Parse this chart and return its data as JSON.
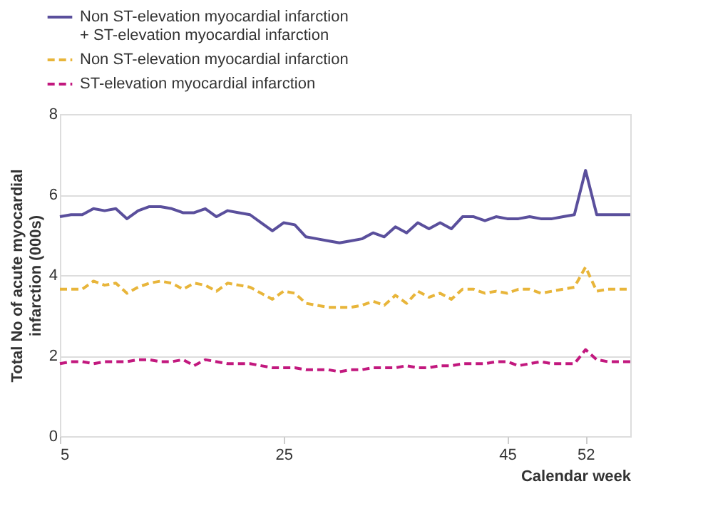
{
  "chart_data": {
    "type": "line",
    "xlabel": "Calendar week",
    "ylabel": "Total No of acute myocardial\ninfarction (000s)",
    "x": [
      5,
      6,
      7,
      8,
      9,
      10,
      11,
      12,
      13,
      14,
      15,
      16,
      17,
      18,
      19,
      20,
      21,
      22,
      23,
      24,
      25,
      26,
      27,
      28,
      29,
      30,
      31,
      32,
      33,
      34,
      35,
      36,
      37,
      38,
      39,
      40,
      41,
      42,
      43,
      44,
      45,
      46,
      47,
      48,
      49,
      50,
      51,
      52,
      53,
      54,
      55,
      56
    ],
    "series": [
      {
        "name": "Non ST-elevation myocardial infarction\n+ ST-elevation myocardial infarction",
        "color": "#5a4f9c",
        "line_style": "solid",
        "values": [
          5.45,
          5.5,
          5.5,
          5.65,
          5.6,
          5.65,
          5.4,
          5.6,
          5.7,
          5.7,
          5.65,
          5.55,
          5.55,
          5.65,
          5.45,
          5.6,
          5.55,
          5.5,
          5.3,
          5.1,
          5.3,
          5.25,
          4.95,
          4.9,
          4.85,
          4.8,
          4.85,
          4.9,
          5.05,
          4.95,
          5.2,
          5.05,
          5.3,
          5.15,
          5.3,
          5.15,
          5.45,
          5.45,
          5.35,
          5.45,
          5.4,
          5.4,
          5.45,
          5.4,
          5.4,
          5.45,
          5.5,
          6.6,
          5.5,
          5.5,
          5.5,
          5.5
        ]
      },
      {
        "name": "Non ST-elevation myocardial infarction",
        "color": "#e8b53a",
        "line_style": "dashed",
        "values": [
          3.65,
          3.65,
          3.65,
          3.85,
          3.75,
          3.8,
          3.55,
          3.7,
          3.8,
          3.85,
          3.8,
          3.65,
          3.8,
          3.75,
          3.6,
          3.8,
          3.75,
          3.7,
          3.55,
          3.4,
          3.6,
          3.55,
          3.3,
          3.25,
          3.2,
          3.2,
          3.2,
          3.25,
          3.35,
          3.25,
          3.5,
          3.3,
          3.6,
          3.45,
          3.55,
          3.4,
          3.65,
          3.65,
          3.55,
          3.6,
          3.55,
          3.65,
          3.65,
          3.55,
          3.6,
          3.65,
          3.7,
          4.2,
          3.6,
          3.65,
          3.65,
          3.65
        ]
      },
      {
        "name": "ST-elevation myocardial infarction",
        "color": "#c2187e",
        "line_style": "dashed",
        "values": [
          1.8,
          1.85,
          1.85,
          1.8,
          1.85,
          1.85,
          1.85,
          1.9,
          1.9,
          1.85,
          1.85,
          1.9,
          1.75,
          1.9,
          1.85,
          1.8,
          1.8,
          1.8,
          1.75,
          1.7,
          1.7,
          1.7,
          1.65,
          1.65,
          1.65,
          1.6,
          1.65,
          1.65,
          1.7,
          1.7,
          1.7,
          1.75,
          1.7,
          1.7,
          1.75,
          1.75,
          1.8,
          1.8,
          1.8,
          1.85,
          1.85,
          1.75,
          1.8,
          1.85,
          1.8,
          1.8,
          1.8,
          2.15,
          1.9,
          1.85,
          1.85,
          1.85
        ]
      }
    ],
    "xlim": [
      5,
      56
    ],
    "xticks": [
      5,
      25,
      45,
      52
    ],
    "ylim": [
      0,
      8
    ],
    "yticks": [
      0,
      2,
      4,
      6,
      8
    ],
    "grid": "y",
    "legend": "top left",
    "marker": "none"
  }
}
